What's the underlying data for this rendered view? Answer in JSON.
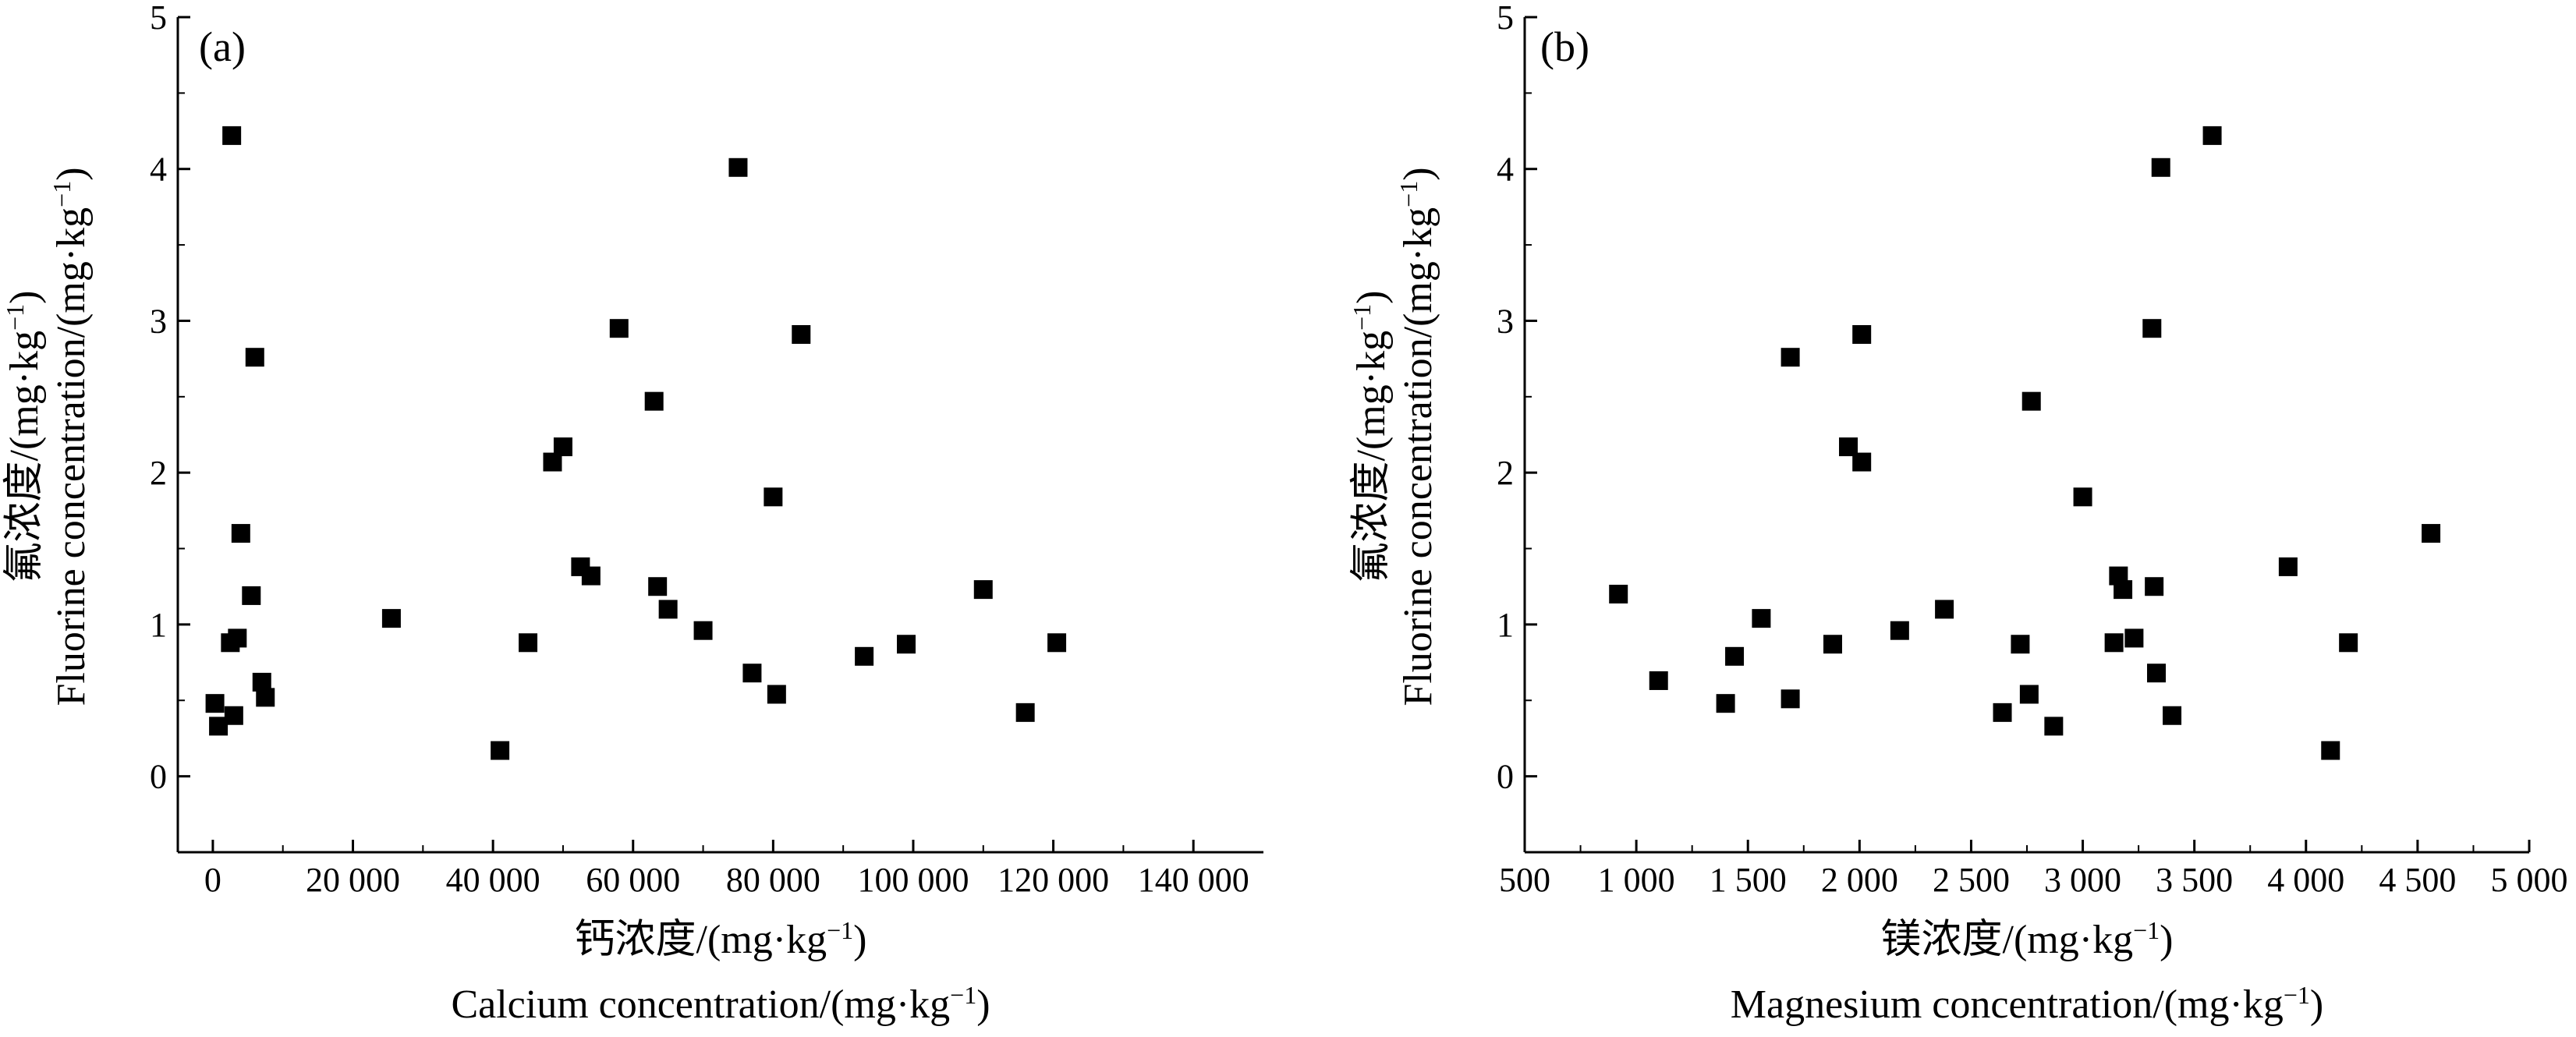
{
  "chart_data": [
    {
      "type": "scatter",
      "panel_label": "(a)",
      "xlabel_cn": "钙浓度",
      "xlabel_en": "Calcium concentration",
      "ylabel_cn": "氟浓度",
      "ylabel_en": "Fluorine concentration",
      "units": {
        "base": "/(mg·kg",
        "sup": "−1",
        "close": ")"
      },
      "xlim": [
        -5000,
        150000
      ],
      "ylim": [
        -0.5,
        5
      ],
      "x_ticks": [
        0,
        20000,
        40000,
        60000,
        80000,
        100000,
        120000,
        140000
      ],
      "x_tick_labels": [
        "0",
        "20 000",
        "40 000",
        "60 000",
        "80 000",
        "100 000",
        "120 000",
        "140 000"
      ],
      "y_ticks": [
        0,
        1,
        2,
        3,
        4,
        5
      ],
      "y_tick_labels": [
        "0",
        "1",
        "2",
        "3",
        "4",
        "5"
      ],
      "grid": false,
      "marker": "square",
      "color": "#000000",
      "points": [
        [
          300,
          0.48
        ],
        [
          800,
          0.33
        ],
        [
          2500,
          0.88
        ],
        [
          2700,
          4.22
        ],
        [
          3000,
          0.4
        ],
        [
          3500,
          0.91
        ],
        [
          4000,
          1.6
        ],
        [
          5500,
          1.19
        ],
        [
          6000,
          2.76
        ],
        [
          7000,
          0.62
        ],
        [
          7500,
          0.52
        ],
        [
          25500,
          1.04
        ],
        [
          41000,
          0.17
        ],
        [
          45000,
          0.88
        ],
        [
          48500,
          2.07
        ],
        [
          50000,
          2.17
        ],
        [
          52500,
          1.38
        ],
        [
          54000,
          1.32
        ],
        [
          58000,
          2.95
        ],
        [
          63000,
          2.47
        ],
        [
          63500,
          1.25
        ],
        [
          65000,
          1.1
        ],
        [
          70000,
          0.96
        ],
        [
          75000,
          4.01
        ],
        [
          77000,
          0.68
        ],
        [
          80000,
          1.84
        ],
        [
          80500,
          0.54
        ],
        [
          84000,
          2.91
        ],
        [
          93000,
          0.79
        ],
        [
          99000,
          0.87
        ],
        [
          110000,
          1.23
        ],
        [
          116000,
          0.42
        ],
        [
          120500,
          0.88
        ]
      ]
    },
    {
      "type": "scatter",
      "panel_label": "(b)",
      "xlabel_cn": "镁浓度",
      "xlabel_en": "Magnesium concentration",
      "ylabel_cn": "氟浓度",
      "ylabel_en": "Fluorine concentration",
      "units": {
        "base": "/(mg·kg",
        "sup": "−1",
        "close": ")"
      },
      "xlim": [
        500,
        5000
      ],
      "ylim": [
        -0.5,
        5
      ],
      "x_ticks": [
        500,
        1000,
        1500,
        2000,
        2500,
        3000,
        3500,
        4000,
        4500,
        5000
      ],
      "x_tick_labels": [
        "500",
        "1 000",
        "1 500",
        "2 000",
        "2 500",
        "3 000",
        "3 500",
        "4 000",
        "4 500",
        "5 000"
      ],
      "y_ticks": [
        0,
        1,
        2,
        3,
        4,
        5
      ],
      "y_tick_labels": [
        "0",
        "1",
        "2",
        "3",
        "4",
        "5"
      ],
      "grid": false,
      "marker": "square",
      "color": "#000000",
      "points": [
        [
          920,
          1.2
        ],
        [
          1100,
          0.63
        ],
        [
          1400,
          0.48
        ],
        [
          1440,
          0.79
        ],
        [
          1560,
          1.04
        ],
        [
          1690,
          0.51
        ],
        [
          1690,
          2.76
        ],
        [
          1880,
          0.87
        ],
        [
          1950,
          2.17
        ],
        [
          2010,
          2.07
        ],
        [
          2010,
          2.91
        ],
        [
          2180,
          0.96
        ],
        [
          2380,
          1.1
        ],
        [
          2640,
          0.42
        ],
        [
          2720,
          0.87
        ],
        [
          2760,
          0.54
        ],
        [
          2770,
          2.47
        ],
        [
          2870,
          0.33
        ],
        [
          3000,
          1.84
        ],
        [
          3140,
          0.88
        ],
        [
          3160,
          1.32
        ],
        [
          3180,
          1.23
        ],
        [
          3230,
          0.91
        ],
        [
          3310,
          2.95
        ],
        [
          3320,
          1.25
        ],
        [
          3330,
          0.68
        ],
        [
          3350,
          4.01
        ],
        [
          3400,
          0.4
        ],
        [
          3580,
          4.22
        ],
        [
          3920,
          1.38
        ],
        [
          4110,
          0.17
        ],
        [
          4190,
          0.88
        ],
        [
          4560,
          1.6
        ]
      ]
    }
  ]
}
